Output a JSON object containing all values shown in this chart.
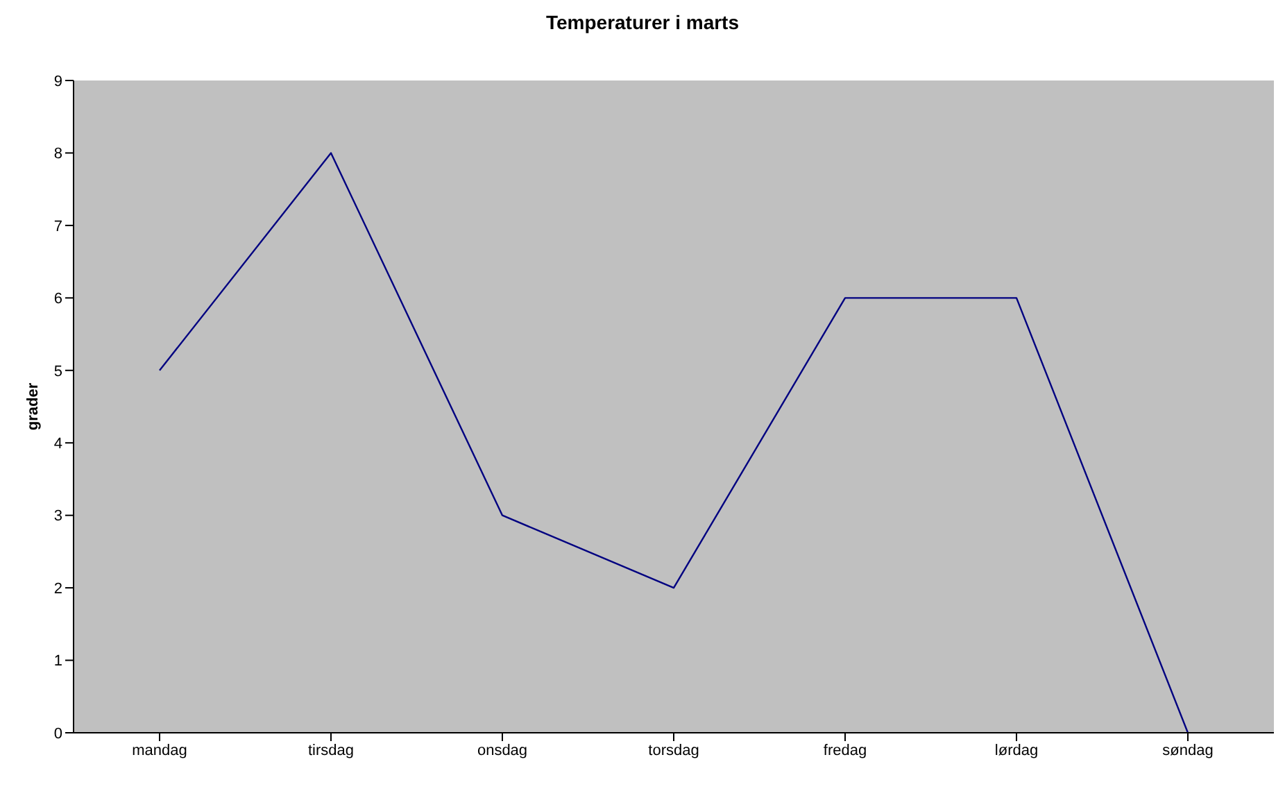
{
  "chart_data": {
    "type": "line",
    "title": "Temperaturer i marts",
    "ylabel": "grader",
    "categories": [
      "mandag",
      "tirsdag",
      "onsdag",
      "torsdag",
      "fredag",
      "lørdag",
      "søndag"
    ],
    "series": [
      {
        "color": "#000080",
        "values": [
          5,
          8,
          3,
          2,
          6,
          6,
          0
        ]
      }
    ],
    "ylim": [
      0,
      9
    ],
    "yticks": [
      0,
      1,
      2,
      3,
      4,
      5,
      6,
      7,
      8,
      9
    ],
    "grid": false,
    "legend": false,
    "marker": "none",
    "line_style": "solid"
  }
}
